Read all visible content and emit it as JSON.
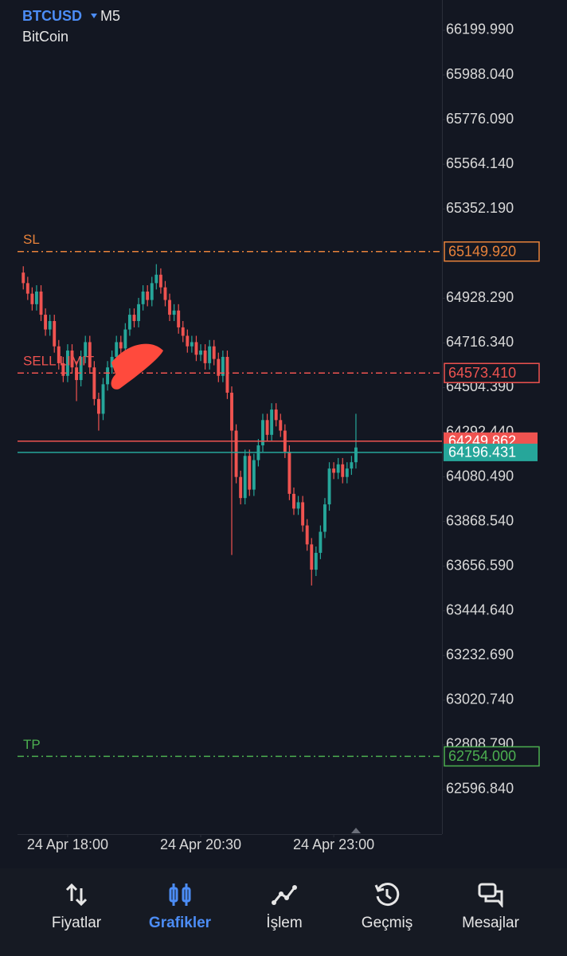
{
  "header": {
    "symbol": "BTCUSD",
    "timeframe": "M5",
    "description": "BitCoin"
  },
  "chart_data": {
    "type": "candlestick",
    "x": [
      0,
      1,
      2,
      3,
      4,
      5,
      6,
      7,
      8,
      9,
      10,
      11,
      12,
      13,
      14,
      15,
      16,
      17,
      18,
      19,
      20,
      21,
      22,
      23,
      24,
      25,
      26,
      27,
      28,
      29,
      30,
      31,
      32,
      33,
      34,
      35,
      36,
      37,
      38,
      39,
      40,
      41,
      42,
      43,
      44,
      45,
      46,
      47,
      48,
      49,
      50,
      51,
      52,
      53,
      54,
      55,
      56,
      57,
      58,
      59,
      60,
      61,
      62,
      63,
      64,
      65,
      66,
      67,
      68,
      69,
      70,
      71,
      72,
      73,
      74,
      75
    ],
    "open": [
      65050,
      65000,
      64950,
      64900,
      64960,
      64850,
      64780,
      64820,
      64700,
      64620,
      64560,
      64680,
      64600,
      64540,
      64650,
      64720,
      64600,
      64450,
      64380,
      64520,
      64600,
      64650,
      64720,
      64690,
      64780,
      64850,
      64820,
      64900,
      64960,
      64920,
      65000,
      65040,
      64980,
      64920,
      64850,
      64870,
      64790,
      64750,
      64700,
      64720,
      64660,
      64680,
      64620,
      64700,
      64640,
      64560,
      64650,
      64480,
      64300,
      64080,
      63980,
      64180,
      64020,
      64160,
      64230,
      64350,
      64280,
      64400,
      64350,
      64300,
      64200,
      64000,
      63930,
      63960,
      63850,
      63760,
      63640,
      63720,
      63820,
      63950,
      64120,
      64100,
      64140,
      64080,
      64120,
      64150
    ],
    "high": [
      65080,
      65030,
      64980,
      64990,
      64990,
      64880,
      64850,
      64850,
      64730,
      64650,
      64710,
      64710,
      64630,
      64680,
      64750,
      64750,
      64630,
      64480,
      64550,
      64630,
      64680,
      64750,
      64750,
      64810,
      64880,
      64880,
      64930,
      64990,
      64990,
      65030,
      65090,
      65070,
      65010,
      64950,
      64900,
      64900,
      64820,
      64780,
      64750,
      64750,
      64710,
      64710,
      64730,
      64730,
      64670,
      64680,
      64680,
      64510,
      64330,
      64110,
      64210,
      64210,
      64190,
      64260,
      64380,
      64380,
      64430,
      64430,
      64380,
      64330,
      64230,
      64030,
      63990,
      63990,
      63880,
      63790,
      63750,
      63850,
      63980,
      64150,
      64150,
      64170,
      64170,
      64150,
      64180,
      64380
    ],
    "low": [
      64970,
      64920,
      64870,
      64870,
      64820,
      64750,
      64750,
      64670,
      64590,
      64530,
      64530,
      64570,
      64440,
      64510,
      64620,
      64570,
      64420,
      64300,
      64350,
      64490,
      64570,
      64620,
      64660,
      64660,
      64750,
      64790,
      64790,
      64870,
      64890,
      64890,
      64970,
      64950,
      64890,
      64820,
      64820,
      64760,
      64720,
      64670,
      64670,
      64630,
      64630,
      64590,
      64590,
      64610,
      64530,
      64530,
      64450,
      63710,
      64050,
      63950,
      63950,
      63990,
      63990,
      64130,
      64200,
      64250,
      64250,
      64320,
      64270,
      64170,
      63970,
      63900,
      63900,
      63820,
      63730,
      63565,
      63610,
      63690,
      63790,
      63920,
      64070,
      64070,
      64050,
      64050,
      64090,
      64120
    ],
    "close": [
      65000,
      64950,
      64900,
      64960,
      64850,
      64780,
      64820,
      64700,
      64620,
      64560,
      64680,
      64600,
      64540,
      64650,
      64720,
      64600,
      64450,
      64380,
      64520,
      64600,
      64650,
      64720,
      64690,
      64780,
      64850,
      64820,
      64900,
      64960,
      64920,
      65000,
      65040,
      64980,
      64920,
      64850,
      64870,
      64790,
      64750,
      64700,
      64720,
      64660,
      64680,
      64620,
      64700,
      64640,
      64560,
      64650,
      64480,
      64300,
      64080,
      63980,
      64180,
      64020,
      64160,
      64230,
      64350,
      64280,
      64400,
      64350,
      64300,
      64200,
      64000,
      63930,
      63960,
      63850,
      63760,
      63640,
      63720,
      63820,
      63950,
      64120,
      64100,
      64140,
      64080,
      64120,
      64150,
      64220
    ],
    "up_color": "#26a69a",
    "down_color": "#ef5350",
    "xlim": [
      -1.3,
      94.4
    ],
    "xticks": [
      {
        "value": 10,
        "label": "24 Apr 18:00"
      },
      {
        "value": 40,
        "label": "24 Apr 20:30"
      },
      {
        "value": 70,
        "label": "24 Apr 23:00"
      }
    ],
    "ylim": [
      62385.11,
      66343.66
    ],
    "yticks": [
      {
        "value": 66199.99,
        "label": "66199.990"
      },
      {
        "value": 65988.04,
        "label": "65988.040"
      },
      {
        "value": 65776.09,
        "label": "65776.090"
      },
      {
        "value": 65564.14,
        "label": "65564.140"
      },
      {
        "value": 65352.19,
        "label": "65352.190"
      },
      {
        "value": 64928.29,
        "label": "64928.290"
      },
      {
        "value": 64716.34,
        "label": "64716.340"
      },
      {
        "value": 64504.39,
        "label": "64504.390"
      },
      {
        "value": 64292.44,
        "label": "64292.440"
      },
      {
        "value": 64080.49,
        "label": "64080.490"
      },
      {
        "value": 63868.54,
        "label": "63868.540"
      },
      {
        "value": 63656.59,
        "label": "63656.590"
      },
      {
        "value": 63444.64,
        "label": "63444.640"
      },
      {
        "value": 63232.69,
        "label": "63232.690"
      },
      {
        "value": 63020.74,
        "label": "63020.740"
      },
      {
        "value": 62808.79,
        "label": "62808.790"
      },
      {
        "value": 62596.84,
        "label": "62596.840"
      }
    ],
    "levels": [
      {
        "name": "SL",
        "value": 65149.92,
        "label": "65149.920",
        "color": "#e8823a"
      },
      {
        "name": "SELL LIMIT",
        "value": 64573.41,
        "label": "64573.410",
        "color": "#ef5350"
      },
      {
        "name": "TP",
        "value": 62754,
        "label": "62754.000",
        "color": "#4caf50"
      }
    ],
    "prices": [
      {
        "value": 64249.862,
        "label": "64249.862",
        "color": "#ef5350"
      },
      {
        "value": 64196.431,
        "label": "64196.431",
        "color": "#26a69a"
      }
    ]
  },
  "nav": {
    "items": [
      {
        "label": "Fiyatlar",
        "active": false
      },
      {
        "label": "Grafikler",
        "active": true
      },
      {
        "label": "İşlem",
        "active": false
      },
      {
        "label": "Geçmiş",
        "active": false
      },
      {
        "label": "Mesajlar",
        "active": false
      }
    ]
  }
}
